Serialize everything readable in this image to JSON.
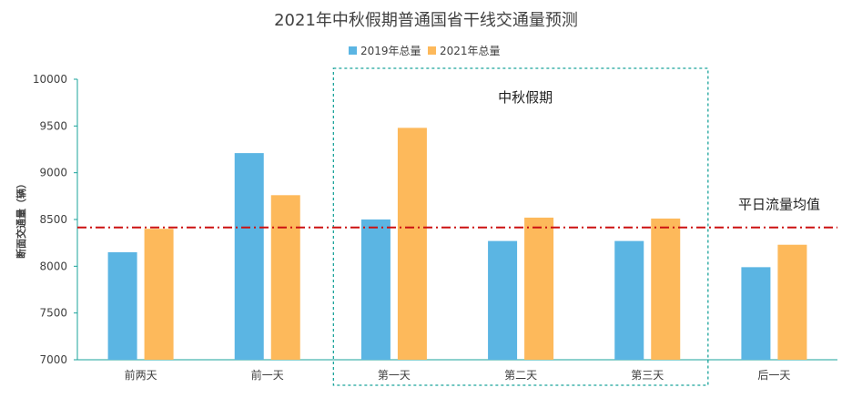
{
  "chart_data": {
    "type": "bar",
    "title": "2021年中秋假期普通国省干线交通量预测",
    "ylabel": "断面交通量（辆）",
    "xlabel": "",
    "ylim": [
      7000,
      10000
    ],
    "yticks": [
      7000,
      7500,
      8000,
      8500,
      9000,
      9500,
      10000
    ],
    "categories": [
      "前两天",
      "前一天",
      "第一天",
      "第二天",
      "第三天",
      "后一天"
    ],
    "series": [
      {
        "name": "2019年总量",
        "color": "#5BB5E3",
        "values": [
          8150,
          9210,
          8500,
          8270,
          8270,
          7990
        ]
      },
      {
        "name": "2021年总量",
        "color": "#FDB95B",
        "values": [
          8400,
          8760,
          9480,
          8520,
          8510,
          8230
        ]
      }
    ],
    "legend_position": "top-center",
    "grid": false,
    "reference_line": {
      "label": "平日流量均值",
      "value": 8415,
      "color": "#CC1111"
    },
    "highlight": {
      "label": "中秋假期",
      "categories": [
        "第一天",
        "第二天",
        "第三天"
      ],
      "color": "#1AA39B"
    }
  }
}
